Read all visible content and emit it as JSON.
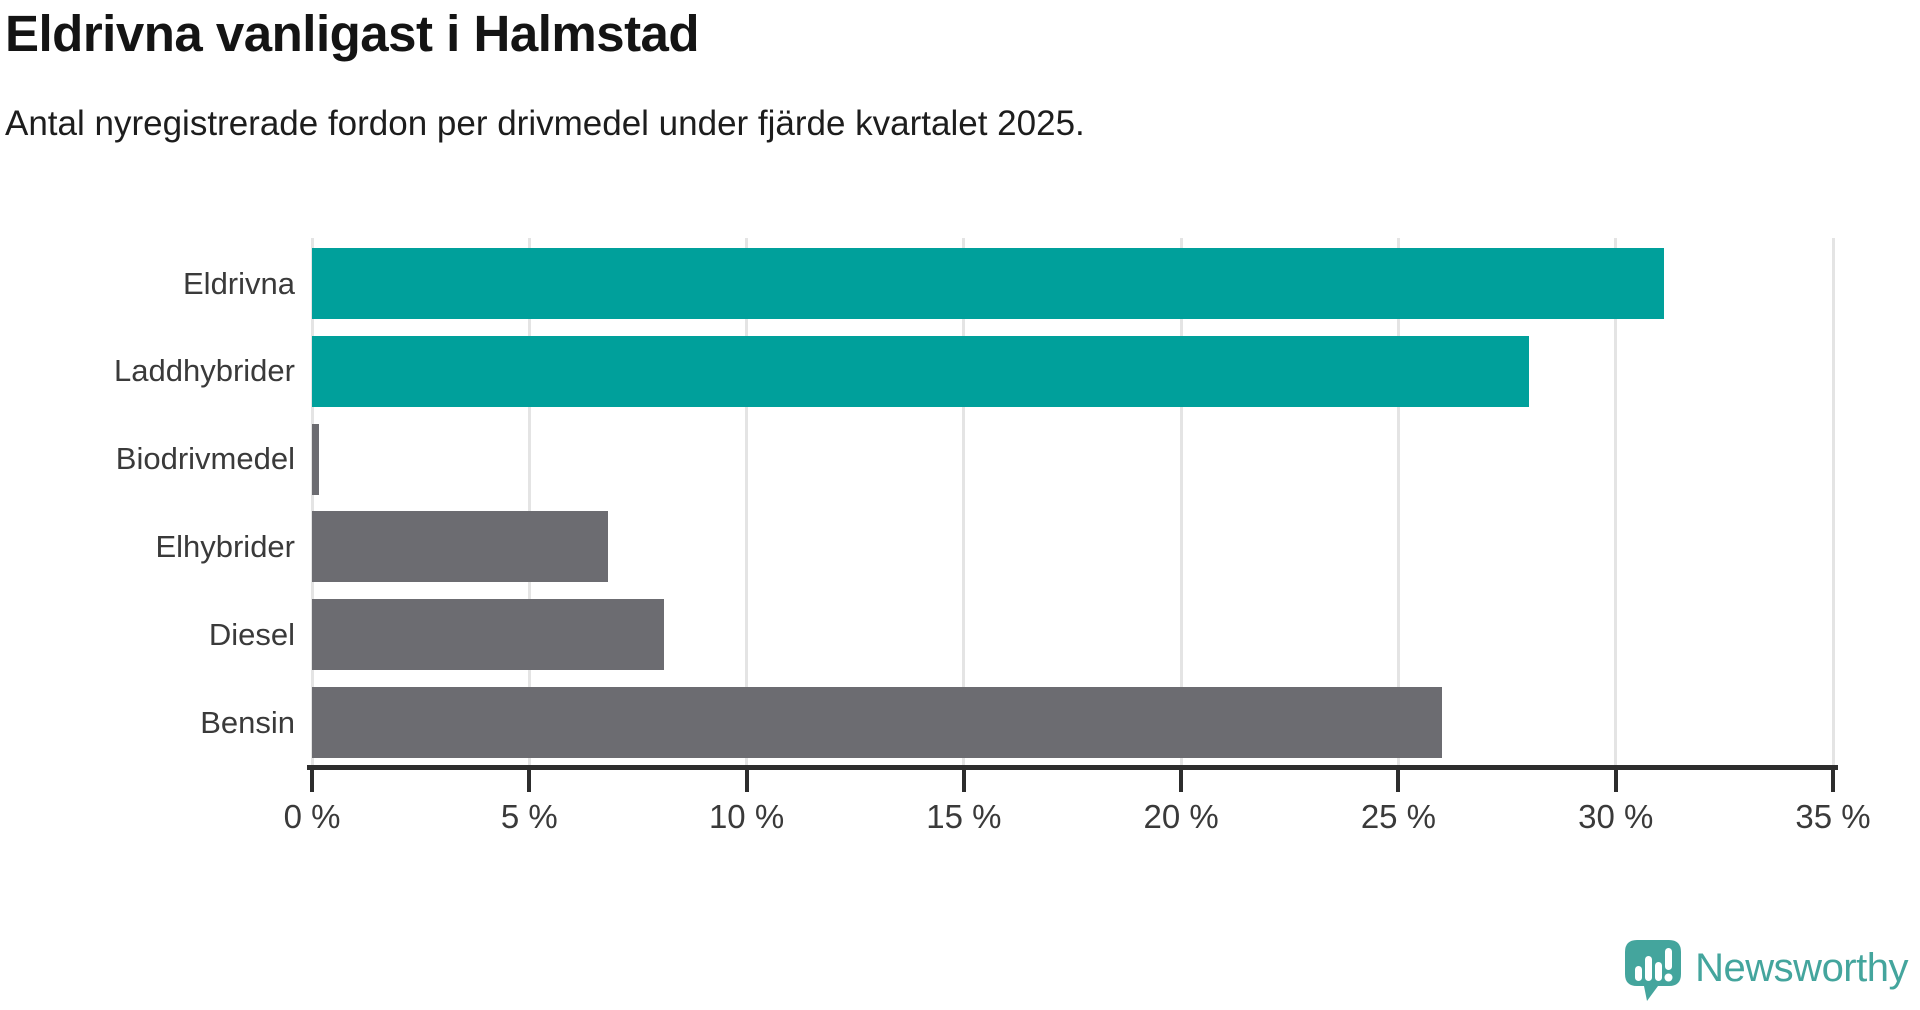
{
  "header": {
    "title": "Eldrivna vanligast i Halmstad",
    "subtitle": "Antal nyregistrerade fordon per drivmedel under fjärde kvartalet 2025."
  },
  "chart_data": {
    "type": "bar",
    "orientation": "horizontal",
    "title": "Eldrivna vanligast i Halmstad",
    "subtitle": "Antal nyregistrerade fordon per drivmedel under fjärde kvartalet 2025.",
    "categories": [
      "Eldrivna",
      "Laddhybrider",
      "Biodrivmedel",
      "Elhybrider",
      "Diesel",
      "Bensin"
    ],
    "values": [
      31.1,
      28.0,
      0.15,
      6.8,
      8.1,
      26.0
    ],
    "unit": "%",
    "bar_colors": [
      "#00a09b",
      "#00a09b",
      "#6c6c71",
      "#6c6c71",
      "#6c6c71",
      "#6c6c71"
    ],
    "xlim": [
      0,
      35
    ],
    "x_tick_values": [
      0,
      5,
      10,
      15,
      20,
      25,
      30,
      35
    ],
    "x_tick_labels": [
      "0 %",
      "5 %",
      "10 %",
      "15 %",
      "20 %",
      "25 %",
      "30 %",
      "35 %"
    ],
    "grid": true,
    "legend": false
  },
  "colors": {
    "teal": "#00a09b",
    "gray": "#6c6c71",
    "gridline": "#e4e4e4",
    "axis": "#2d2d2d",
    "label": "#3a3a3a",
    "logo_teal": "#44a59d"
  },
  "footer": {
    "brand_name": "Newsworthy",
    "logo_icon": "speech-bubble-bar-chart-icon"
  }
}
